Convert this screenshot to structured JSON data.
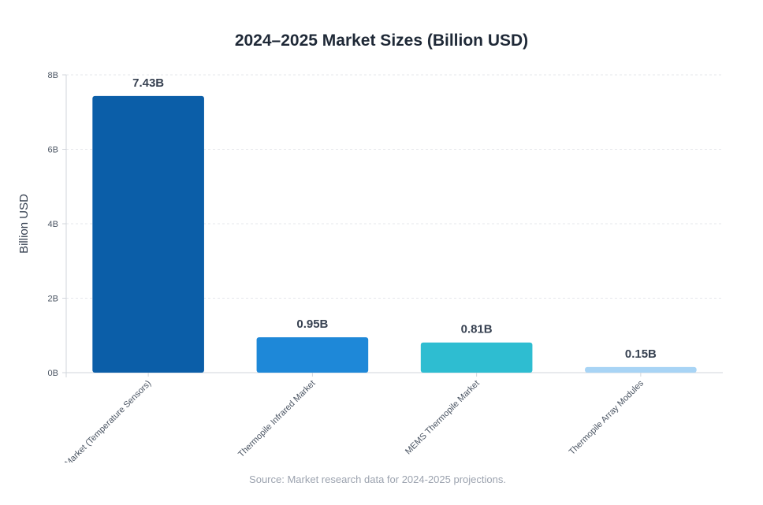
{
  "chart_data": {
    "type": "bar",
    "title": "2024–2025 Market Sizes (Billion USD)",
    "ylabel": "Billion USD",
    "xlabel": "",
    "categories": [
      "Thermopile Market (Temperature Sensors)",
      "Thermopile Infrared Market",
      "MEMS Thermopile Market",
      "Thermopile Array Modules"
    ],
    "values": [
      7.43,
      0.95,
      0.81,
      0.15
    ],
    "value_labels": [
      "7.43B",
      "0.95B",
      "0.81B",
      "0.15B"
    ],
    "colors": [
      "#0b5ea8",
      "#1e88d8",
      "#2ebdd1",
      "#a8d4f5"
    ],
    "ylim": [
      0,
      8
    ],
    "yticks": [
      0,
      2,
      4,
      6,
      8
    ],
    "ytick_labels": [
      "0B",
      "2B",
      "4B",
      "6B",
      "8B"
    ],
    "grid": true,
    "legend": "none"
  },
  "source": "Source: Market research data for 2024-2025 projections."
}
